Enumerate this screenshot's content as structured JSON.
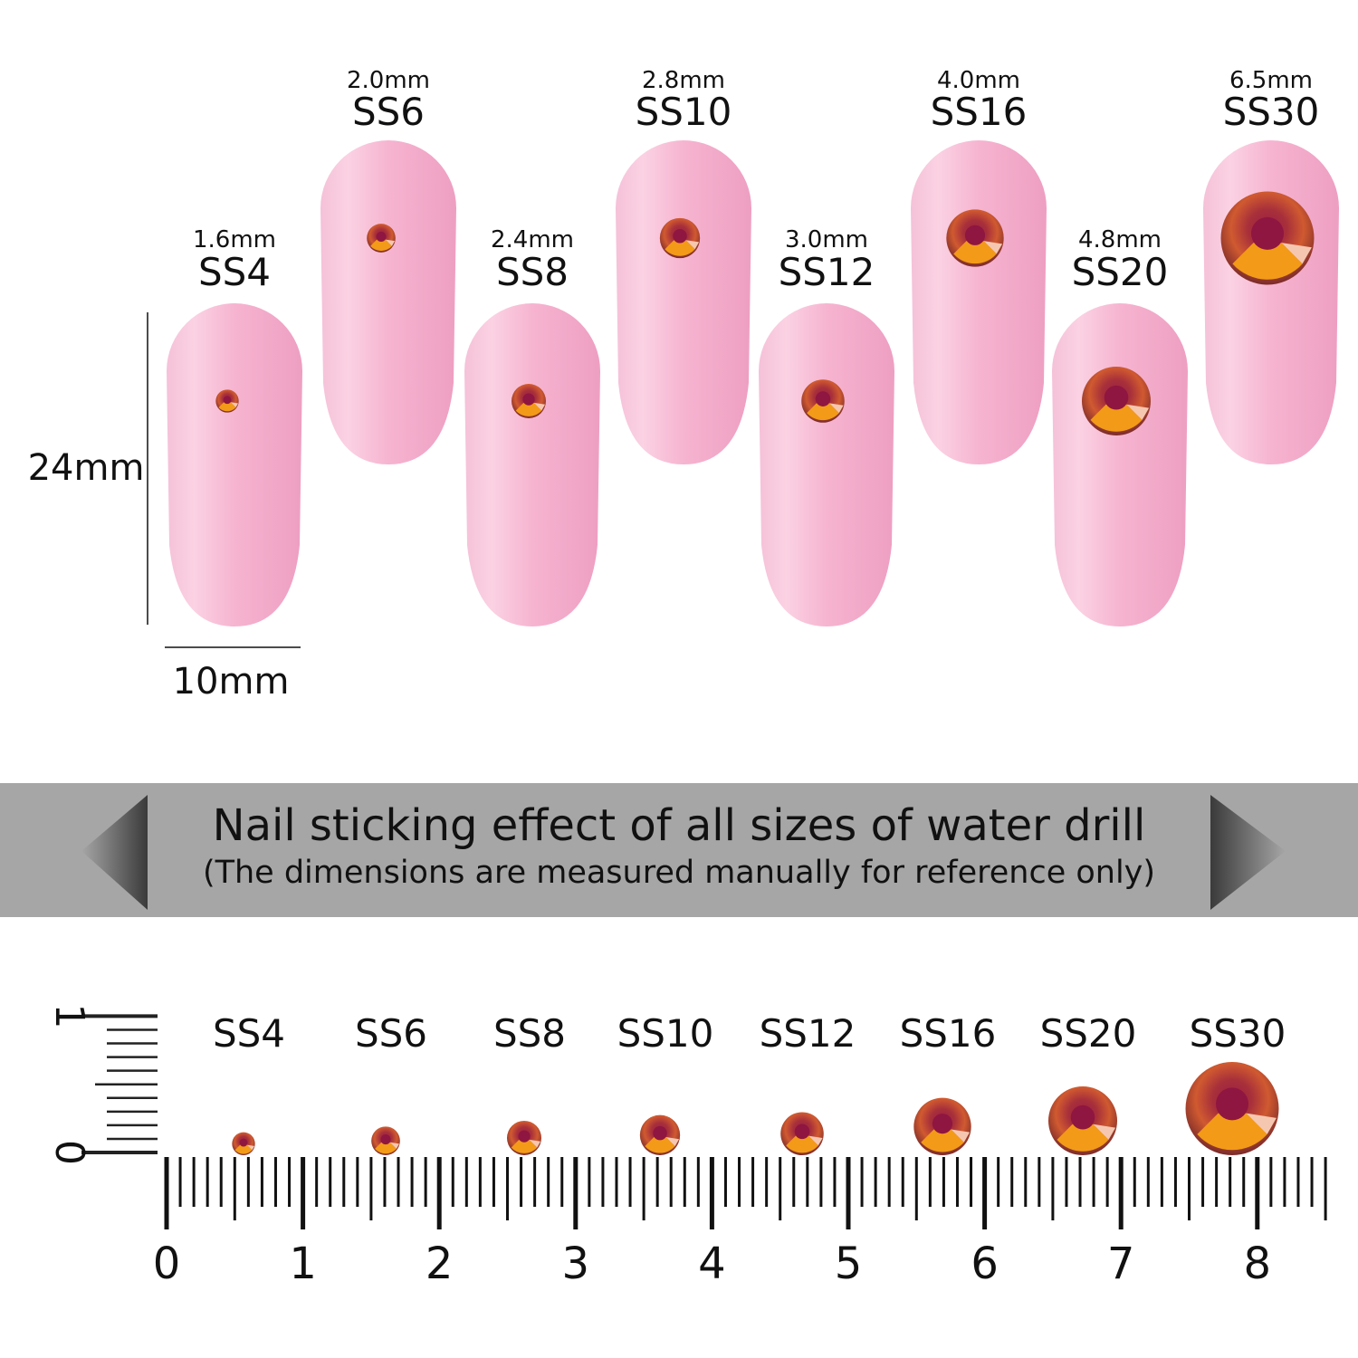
{
  "nails": [
    {
      "size": "SS4",
      "mm": "1.6mm",
      "row": "low",
      "diameter_mm": 1.6
    },
    {
      "size": "SS6",
      "mm": "2.0mm",
      "row": "high",
      "diameter_mm": 2.0
    },
    {
      "size": "SS8",
      "mm": "2.4mm",
      "row": "low",
      "diameter_mm": 2.4
    },
    {
      "size": "SS10",
      "mm": "2.8mm",
      "row": "high",
      "diameter_mm": 2.8
    },
    {
      "size": "SS12",
      "mm": "3.0mm",
      "row": "low",
      "diameter_mm": 3.0
    },
    {
      "size": "SS16",
      "mm": "4.0mm",
      "row": "high",
      "diameter_mm": 4.0
    },
    {
      "size": "SS20",
      "mm": "4.8mm",
      "row": "low",
      "diameter_mm": 4.8
    },
    {
      "size": "SS30",
      "mm": "6.5mm",
      "row": "high",
      "diameter_mm": 6.5
    }
  ],
  "dimensions": {
    "height": "24mm",
    "width": "10mm"
  },
  "banner": {
    "title": "Nail sticking effect of all sizes of water drill",
    "subtitle": "(The dimensions are measured manually for reference only)"
  },
  "ruler": {
    "labels": [
      "0",
      "1",
      "2",
      "3",
      "4",
      "5",
      "6",
      "7",
      "8"
    ],
    "vertical_labels": [
      "0",
      "1"
    ],
    "gems": [
      "SS4",
      "SS6",
      "SS8",
      "SS10",
      "SS12",
      "SS16",
      "SS20",
      "SS30"
    ]
  },
  "colors": {
    "nail": "#f7b6d2",
    "banner": "#a6a6a6",
    "gem_top": "#8e1c3a",
    "gem_bottom": "#f08a10"
  }
}
